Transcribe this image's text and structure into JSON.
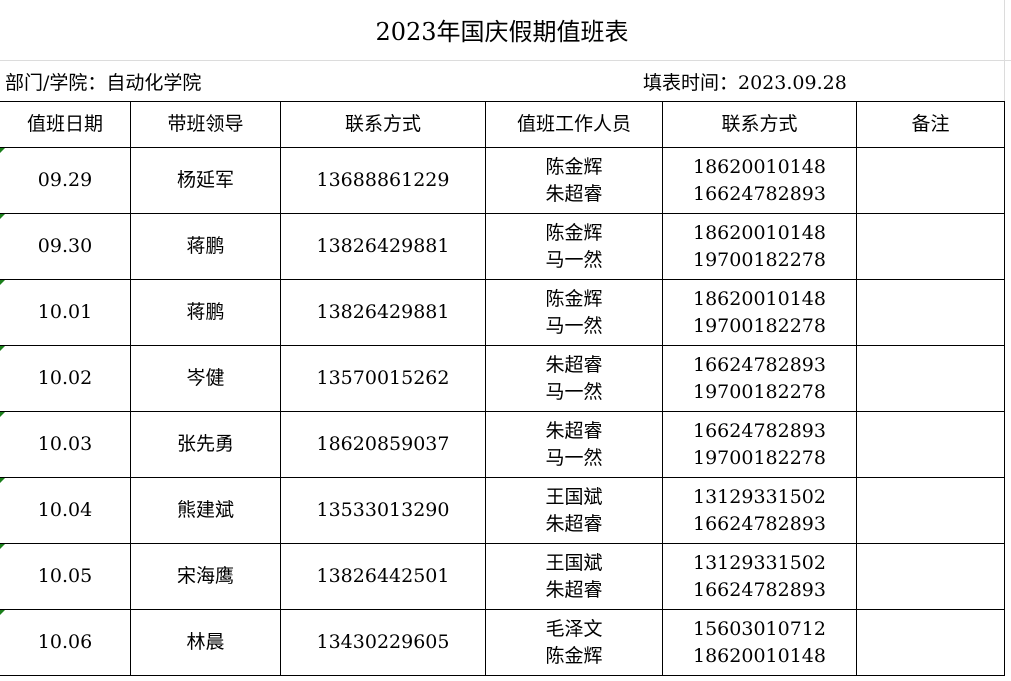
{
  "title": "2023年国庆假期值班表",
  "department": "部门/学院：自动化学院",
  "fill_date": "填表时间：2023.09.28",
  "headers": [
    "值班日期",
    "带班领导",
    "联系方式",
    "值班工作人员",
    "联系方式",
    "备注"
  ],
  "rows": [
    {
      "date": "09.29",
      "leader": "杨延军",
      "leader_phone": "13688861229",
      "staff": [
        "陈金辉",
        "朱超睿"
      ],
      "staff_phone": [
        "18620010148",
        "16624782893"
      ],
      "note": ""
    },
    {
      "date": "09.30",
      "leader": "蒋鹏",
      "leader_phone": "13826429881",
      "staff": [
        "陈金辉",
        "马一然"
      ],
      "staff_phone": [
        "18620010148",
        "19700182278"
      ],
      "note": ""
    },
    {
      "date": "10.01",
      "leader": "蒋鹏",
      "leader_phone": "13826429881",
      "staff": [
        "陈金辉",
        "马一然"
      ],
      "staff_phone": [
        "18620010148",
        "19700182278"
      ],
      "note": ""
    },
    {
      "date": "10.02",
      "leader": "岑健",
      "leader_phone": "13570015262",
      "staff": [
        "朱超睿",
        "马一然"
      ],
      "staff_phone": [
        "16624782893",
        "19700182278"
      ],
      "note": ""
    },
    {
      "date": "10.03",
      "leader": "张先勇",
      "leader_phone": "18620859037",
      "staff": [
        "朱超睿",
        "马一然"
      ],
      "staff_phone": [
        "16624782893",
        "19700182278"
      ],
      "note": ""
    },
    {
      "date": "10.04",
      "leader": "熊建斌",
      "leader_phone": "13533013290",
      "staff": [
        "王国斌",
        "朱超睿"
      ],
      "staff_phone": [
        "13129331502",
        "16624782893"
      ],
      "note": ""
    },
    {
      "date": "10.05",
      "leader": "宋海鹰",
      "leader_phone": "13826442501",
      "staff": [
        "王国斌",
        "朱超睿"
      ],
      "staff_phone": [
        "13129331502",
        "16624782893"
      ],
      "note": ""
    },
    {
      "date": "10.06",
      "leader": "林晨",
      "leader_phone": "13430229605",
      "staff": [
        "毛泽文",
        "陈金辉"
      ],
      "staff_phone": [
        "15603010712",
        "18620010148"
      ],
      "note": ""
    }
  ]
}
